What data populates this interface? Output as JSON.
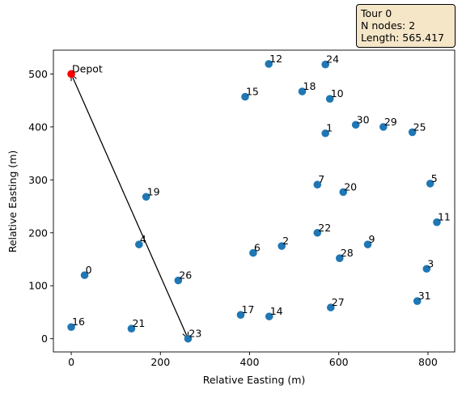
{
  "info_box": {
    "tour": "Tour 0",
    "n_nodes": "N nodes: 2",
    "length": "Length: 565.417"
  },
  "chart_data": {
    "type": "scatter",
    "xlabel": "Relative Easting (m)",
    "ylabel": "Relative Easting (m)",
    "xlim": [
      -40,
      860
    ],
    "ylim": [
      -25,
      545
    ],
    "xticks": [
      0,
      200,
      400,
      600,
      800
    ],
    "yticks": [
      0,
      100,
      200,
      300,
      400,
      500
    ],
    "grid": false,
    "depot": {
      "label": "Depot",
      "x": 0,
      "y": 500,
      "color": "#ff0000"
    },
    "point_color": "#1f77b4",
    "points": [
      {
        "label": "0",
        "x": 30,
        "y": 120
      },
      {
        "label": "1",
        "x": 570,
        "y": 388
      },
      {
        "label": "2",
        "x": 472,
        "y": 175
      },
      {
        "label": "3",
        "x": 797,
        "y": 132
      },
      {
        "label": "4",
        "x": 152,
        "y": 178
      },
      {
        "label": "5",
        "x": 805,
        "y": 293
      },
      {
        "label": "6",
        "x": 408,
        "y": 162
      },
      {
        "label": "7",
        "x": 552,
        "y": 291
      },
      {
        "label": "9",
        "x": 665,
        "y": 178
      },
      {
        "label": "10",
        "x": 580,
        "y": 453
      },
      {
        "label": "11",
        "x": 820,
        "y": 220
      },
      {
        "label": "12",
        "x": 443,
        "y": 519
      },
      {
        "label": "14",
        "x": 444,
        "y": 42
      },
      {
        "label": "15",
        "x": 390,
        "y": 457
      },
      {
        "label": "16",
        "x": 0,
        "y": 22
      },
      {
        "label": "17",
        "x": 380,
        "y": 45
      },
      {
        "label": "18",
        "x": 518,
        "y": 467
      },
      {
        "label": "19",
        "x": 168,
        "y": 268
      },
      {
        "label": "20",
        "x": 610,
        "y": 277
      },
      {
        "label": "21",
        "x": 135,
        "y": 19
      },
      {
        "label": "22",
        "x": 552,
        "y": 200
      },
      {
        "label": "23",
        "x": 262,
        "y": 0
      },
      {
        "label": "24",
        "x": 570,
        "y": 518
      },
      {
        "label": "25",
        "x": 765,
        "y": 390
      },
      {
        "label": "26",
        "x": 240,
        "y": 110
      },
      {
        "label": "27",
        "x": 582,
        "y": 59
      },
      {
        "label": "28",
        "x": 602,
        "y": 152
      },
      {
        "label": "29",
        "x": 700,
        "y": 400
      },
      {
        "label": "30",
        "x": 638,
        "y": 404
      },
      {
        "label": "31",
        "x": 776,
        "y": 71
      }
    ],
    "route": [
      {
        "from": "Depot",
        "to": "23",
        "x1": 0,
        "y1": 500,
        "x2": 262,
        "y2": 0
      },
      {
        "from": "23",
        "to": "Depot",
        "x1": 262,
        "y1": 0,
        "x2": 0,
        "y2": 500
      }
    ]
  }
}
